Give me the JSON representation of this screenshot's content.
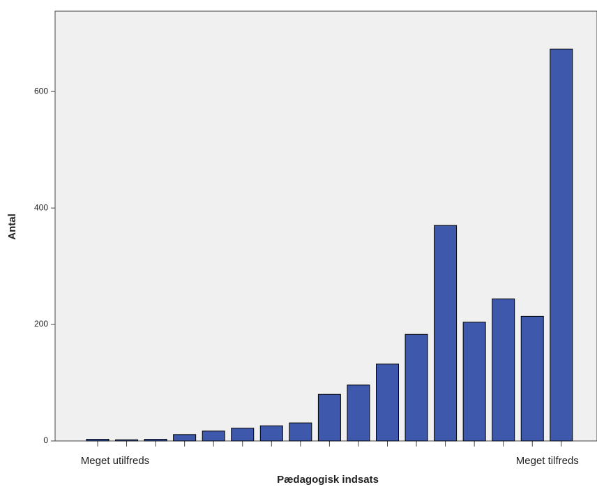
{
  "chart_data": {
    "type": "bar",
    "x_label": "Pædagogisk indsats",
    "y_label": "Antal",
    "categories": [
      "Meget utilfreds",
      null,
      null,
      null,
      null,
      null,
      null,
      null,
      null,
      null,
      null,
      null,
      null,
      null,
      null,
      null,
      "Meget tilfreds"
    ],
    "values": [
      3,
      2,
      3,
      11,
      17,
      22,
      26,
      31,
      80,
      96,
      132,
      183,
      370,
      204,
      244,
      214,
      673
    ],
    "color": "#3e58ac",
    "ylim": [
      0,
      738
    ],
    "yticks": [
      0,
      200,
      400,
      600
    ],
    "grid": false
  }
}
